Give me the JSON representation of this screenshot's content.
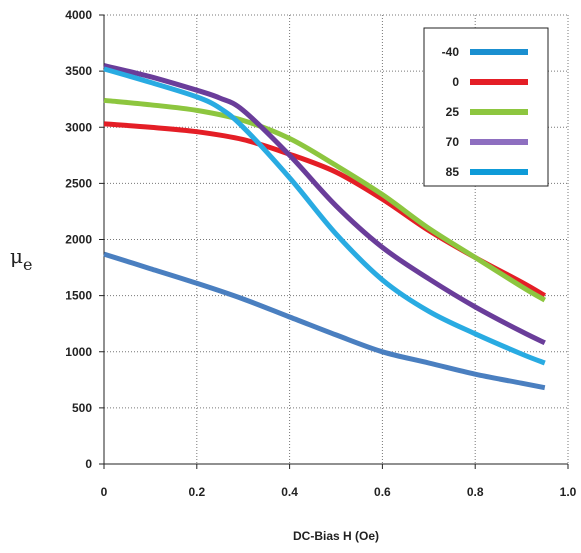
{
  "chart_data": {
    "type": "line",
    "title": "",
    "xlabel": "DC-Bias H (Oe)",
    "ylabel_main": "μ",
    "ylabel_sub": "e",
    "xlim": [
      0,
      1.0
    ],
    "ylim": [
      0,
      4000
    ],
    "x_ticks": [
      "0",
      "0.2",
      "0.4",
      "0.6",
      "0.8",
      "1.0"
    ],
    "y_ticks": [
      "0",
      "500",
      "1000",
      "1500",
      "2000",
      "2500",
      "3000",
      "3500",
      "4000"
    ],
    "grid": true,
    "legend_position": "top-right",
    "series": [
      {
        "name": "-40",
        "color": "#4a7fc0",
        "legend_color": "#1a8fd0",
        "x": [
          0,
          0.1,
          0.2,
          0.3,
          0.4,
          0.5,
          0.6,
          0.7,
          0.8,
          0.9,
          0.95
        ],
        "y": [
          1870,
          1740,
          1610,
          1470,
          1310,
          1150,
          1000,
          900,
          800,
          720,
          680
        ]
      },
      {
        "name": "0",
        "color": "#e41e26",
        "legend_color": "#e41e26",
        "x": [
          0,
          0.1,
          0.2,
          0.3,
          0.4,
          0.5,
          0.6,
          0.7,
          0.8,
          0.9,
          0.95
        ],
        "y": [
          3030,
          3000,
          2960,
          2890,
          2760,
          2600,
          2360,
          2080,
          1840,
          1620,
          1500
        ]
      },
      {
        "name": "25",
        "color": "#8dc63f",
        "legend_color": "#8dc63f",
        "x": [
          0,
          0.1,
          0.2,
          0.3,
          0.4,
          0.5,
          0.6,
          0.7,
          0.8,
          0.9,
          0.95
        ],
        "y": [
          3240,
          3200,
          3150,
          3060,
          2900,
          2660,
          2400,
          2100,
          1840,
          1580,
          1460
        ]
      },
      {
        "name": "70",
        "color": "#6a3d9a",
        "legend_color": "#8e6fc0",
        "x": [
          0,
          0.1,
          0.2,
          0.25,
          0.3,
          0.4,
          0.5,
          0.6,
          0.7,
          0.8,
          0.9,
          0.95
        ],
        "y": [
          3550,
          3450,
          3330,
          3260,
          3150,
          2750,
          2300,
          1930,
          1650,
          1400,
          1180,
          1080
        ]
      },
      {
        "name": "85",
        "color": "#29abe2",
        "legend_color": "#0e9bd8",
        "x": [
          0,
          0.1,
          0.2,
          0.25,
          0.3,
          0.4,
          0.5,
          0.6,
          0.7,
          0.8,
          0.9,
          0.95
        ],
        "y": [
          3520,
          3400,
          3270,
          3170,
          3000,
          2550,
          2050,
          1640,
          1360,
          1160,
          980,
          900
        ]
      }
    ]
  }
}
